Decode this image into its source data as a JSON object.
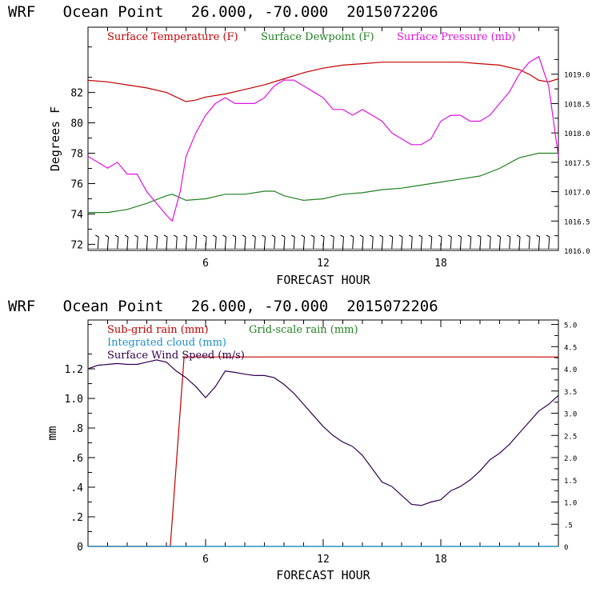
{
  "chart_data": [
    {
      "type": "line",
      "header": "WRF   Ocean Point   26.000, -70.000  2015072206",
      "xlabel": "FORECAST HOUR",
      "ylabel": "Degrees F",
      "xlim": [
        0,
        24
      ],
      "xticks": [
        "6",
        "12",
        "18"
      ],
      "ylim": [
        71.6,
        86.3
      ],
      "yticks": [
        "72",
        "74",
        "76",
        "78",
        "80",
        "82"
      ],
      "y2lim": [
        1016.0,
        1019.8
      ],
      "y2ticks": [
        "1016.0",
        "1016.5",
        "1017.0",
        "1017.5",
        "1018.0",
        "1018.5",
        "1019.0"
      ],
      "grid": false,
      "legend": "top",
      "wind_barbs": true,
      "series": [
        {
          "name": "Surface Temperature (F)",
          "color": "#c00000",
          "axis": "left",
          "x": [
            0,
            1,
            2,
            3,
            4,
            4.5,
            5,
            5.5,
            6,
            7,
            8,
            9,
            10,
            11,
            12,
            13,
            14,
            15,
            16,
            17,
            18,
            19,
            20,
            21,
            22,
            22.5,
            23,
            23.5,
            24
          ],
          "values": [
            82.8,
            82.7,
            82.5,
            82.3,
            82.0,
            81.7,
            81.4,
            81.5,
            81.7,
            81.9,
            82.2,
            82.5,
            82.9,
            83.3,
            83.6,
            83.8,
            83.9,
            84.0,
            84.0,
            84.0,
            84.0,
            84.0,
            83.9,
            83.8,
            83.5,
            83.2,
            82.8,
            82.7,
            82.9
          ]
        },
        {
          "name": "Surface Dewpoint (F)",
          "color": "#208020",
          "axis": "left",
          "x": [
            0,
            1,
            2,
            3,
            4,
            4.3,
            5,
            6,
            7,
            8,
            9,
            9.5,
            10,
            11,
            12,
            13,
            14,
            15,
            16,
            17,
            18,
            19,
            20,
            21,
            22,
            23,
            24
          ],
          "values": [
            74.1,
            74.1,
            74.3,
            74.7,
            75.2,
            75.3,
            74.9,
            75.0,
            75.3,
            75.3,
            75.5,
            75.5,
            75.2,
            74.9,
            75.0,
            75.3,
            75.4,
            75.6,
            75.7,
            75.9,
            76.1,
            76.3,
            76.5,
            77.0,
            77.7,
            78.0,
            78.0
          ]
        },
        {
          "name": "Surface Pressure (mb)",
          "color": "#e010e0",
          "axis": "right",
          "x": [
            0,
            0.5,
            1,
            1.5,
            2,
            2.5,
            3,
            3.5,
            4,
            4.3,
            4.7,
            5,
            5.5,
            6,
            6.5,
            7,
            7.5,
            8,
            8.5,
            9,
            9.5,
            10,
            10.5,
            11,
            11.5,
            12,
            12.5,
            13,
            13.5,
            14,
            14.5,
            15,
            15.5,
            16,
            16.5,
            17,
            17.5,
            18,
            18.5,
            19,
            19.5,
            20,
            20.5,
            21,
            21.5,
            22,
            22.5,
            23,
            23.5,
            24
          ],
          "values": [
            1017.6,
            1017.5,
            1017.4,
            1017.5,
            1017.3,
            1017.3,
            1017.0,
            1016.8,
            1016.6,
            1016.5,
            1017.0,
            1017.6,
            1018.0,
            1018.3,
            1018.5,
            1018.6,
            1018.5,
            1018.5,
            1018.5,
            1018.6,
            1018.8,
            1018.9,
            1018.9,
            1018.8,
            1018.7,
            1018.6,
            1018.4,
            1018.4,
            1018.3,
            1018.4,
            1018.3,
            1018.2,
            1018.0,
            1017.9,
            1017.8,
            1017.8,
            1017.9,
            1018.2,
            1018.3,
            1018.3,
            1018.2,
            1018.2,
            1018.3,
            1018.5,
            1018.7,
            1019.0,
            1019.2,
            1019.3,
            1018.8,
            1017.6
          ]
        }
      ]
    },
    {
      "type": "line",
      "header": "WRF   Ocean Point   26.000, -70.000  2015072206",
      "xlabel": "FORECAST HOUR",
      "ylabel": "mm",
      "xlim": [
        0,
        24
      ],
      "xticks": [
        "6",
        "12",
        "18"
      ],
      "ylim": [
        0,
        1.53
      ],
      "yticks": [
        "0",
        ".2",
        ".4",
        ".6",
        ".8",
        "1.0",
        "1.2"
      ],
      "y2lim": [
        0,
        5.1
      ],
      "y2ticks": [
        "0",
        ".5",
        "1.0",
        "1.5",
        "2.0",
        "2.5",
        "3.0",
        "3.5",
        "4.0",
        "4.5",
        "5.0"
      ],
      "grid": false,
      "legend": "top-left",
      "series": [
        {
          "name": "Sub-grid rain (mm)",
          "color": "#c00000",
          "axis": "left",
          "x": [
            0,
            4.1,
            4.2,
            4.9,
            5.0,
            24
          ],
          "values": [
            0,
            0,
            0,
            1.28,
            1.28,
            1.28
          ]
        },
        {
          "name": "Grid-scale rain (mm)",
          "color": "#208020",
          "axis": "left",
          "x": [
            0,
            24
          ],
          "values": [
            0,
            0
          ]
        },
        {
          "name": "Integrated cloud (mm)",
          "color": "#1f8fd0",
          "axis": "left",
          "x": [
            0,
            24
          ],
          "values": [
            0,
            0
          ]
        },
        {
          "name": "Surface Wind Speed (m/s)",
          "color": "#300050",
          "axis": "right",
          "x": [
            0,
            0.5,
            1,
            1.5,
            2,
            2.5,
            3,
            3.5,
            4,
            4.5,
            5,
            5.5,
            6,
            6.5,
            7,
            7.5,
            8,
            8.5,
            9,
            9.5,
            10,
            10.5,
            11,
            11.5,
            12,
            12.5,
            13,
            13.5,
            14,
            14.5,
            15,
            15.5,
            16,
            16.5,
            17,
            17.5,
            18,
            18.5,
            19,
            19.5,
            20,
            20.5,
            21,
            21.5,
            22,
            22.5,
            23,
            23.5,
            24
          ],
          "values": [
            4.0,
            4.08,
            4.1,
            4.12,
            4.1,
            4.1,
            4.15,
            4.2,
            4.15,
            3.95,
            3.8,
            3.6,
            3.35,
            3.6,
            3.95,
            3.92,
            3.88,
            3.85,
            3.85,
            3.8,
            3.65,
            3.45,
            3.2,
            2.95,
            2.7,
            2.5,
            2.35,
            2.25,
            2.05,
            1.75,
            1.45,
            1.35,
            1.15,
            0.95,
            0.92,
            1.0,
            1.05,
            1.25,
            1.35,
            1.5,
            1.7,
            1.95,
            2.1,
            2.3,
            2.55,
            2.8,
            3.05,
            3.2,
            3.4
          ]
        }
      ]
    }
  ]
}
